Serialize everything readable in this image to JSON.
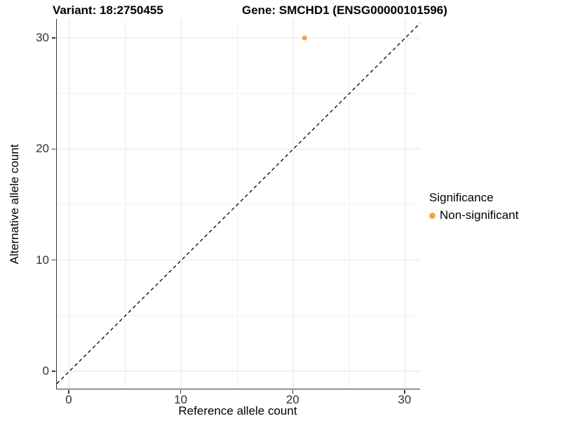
{
  "figure": {
    "title_left": "Variant: 18:2750455",
    "title_right": "Gene: SMCHD1 (ENSG00000101596)"
  },
  "chart_data": {
    "type": "scatter",
    "title": "Variant: 18:2750455  /  Gene: SMCHD1 (ENSG00000101596)",
    "xlabel": "Reference allele count",
    "ylabel": "Alternative allele count",
    "xlim": [
      -1.13,
      31.32
    ],
    "ylim": [
      -1.58,
      31.71
    ],
    "x_ticks": [
      0,
      10,
      20,
      30
    ],
    "y_ticks": [
      0,
      10,
      20,
      30
    ],
    "x_minor_gridlines": [
      5,
      15,
      25
    ],
    "y_minor_gridlines": [
      5,
      15,
      25
    ],
    "grid": "major and minor gridlines, white background",
    "points": [
      {
        "x": 21,
        "y": 30,
        "series": "Non-significant"
      }
    ],
    "reference_line": {
      "type": "identity y=x",
      "style": "dashed",
      "color": "#000000"
    },
    "legend": {
      "title": "Significance",
      "position": "right",
      "items": [
        {
          "label": "Non-significant",
          "color": "#F9A242"
        }
      ]
    },
    "colors": {
      "point": "#F9A242",
      "grid_major": "#E4E4E4",
      "grid_minor": "#F1F1F1",
      "axis_line": "#333333",
      "tick_text": "#333333"
    }
  }
}
